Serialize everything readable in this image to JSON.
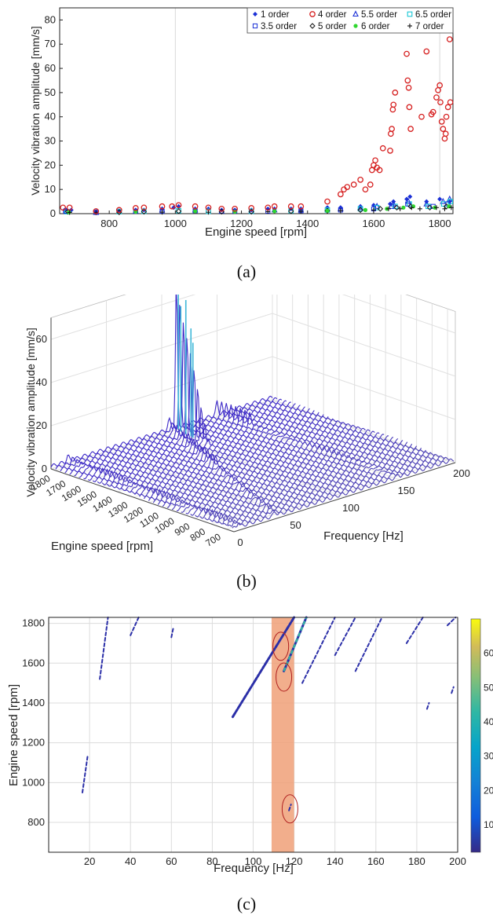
{
  "chart_data": [
    {
      "panel": "(a)",
      "type": "scatter",
      "xlabel": "Engine speed [rpm]",
      "ylabel": "Velocity vibration amplitude [mm/s]",
      "xlim": [
        650,
        1840
      ],
      "ylim": [
        0,
        85
      ],
      "xticks": [
        800,
        1000,
        1200,
        1400,
        1600,
        1800
      ],
      "yticks": [
        0,
        10,
        20,
        30,
        40,
        50,
        60,
        70,
        80
      ],
      "grid": "vertical-light",
      "legend_position": "top-right",
      "legend": [
        "1 order",
        "4 order",
        "5.5 order",
        "6.5 order",
        "3.5 order",
        "5 order",
        "6 order",
        "7 order"
      ],
      "series": [
        {
          "name": "4 order",
          "marker": "circle",
          "color": "#d62020",
          "x": [
            660,
            680,
            760,
            830,
            880,
            905,
            960,
            990,
            1010,
            1060,
            1100,
            1140,
            1180,
            1230,
            1280,
            1300,
            1350,
            1380,
            1460,
            1500,
            1510,
            1520,
            1540,
            1560,
            1575,
            1590,
            1595,
            1600,
            1605,
            1610,
            1618,
            1628,
            1650,
            1652,
            1655,
            1658,
            1660,
            1665,
            1700,
            1703,
            1706,
            1708,
            1712,
            1745,
            1760,
            1775,
            1780,
            1790,
            1795,
            1800,
            1802,
            1806,
            1810,
            1815,
            1818,
            1820,
            1825,
            1830,
            1832
          ],
          "y": [
            2.5,
            2.5,
            1,
            1.5,
            2.3,
            2.5,
            3,
            3,
            3.5,
            3,
            2.5,
            2,
            2,
            2.3,
            2.5,
            3,
            3,
            3,
            5,
            8,
            10,
            11,
            12,
            14,
            10,
            12,
            18,
            20,
            22,
            19,
            18,
            27,
            26,
            33,
            35,
            43,
            45,
            50,
            66,
            55,
            52,
            44,
            35,
            40,
            67,
            41,
            42,
            48,
            51,
            53,
            46,
            38,
            35,
            31,
            33,
            40,
            44,
            72,
            46
          ]
        },
        {
          "name": "1 order",
          "marker": "diamond-filled",
          "color": "#1a2fd6",
          "x": [
            665,
            685,
            760,
            830,
            880,
            905,
            960,
            995,
            1010,
            1060,
            1100,
            1140,
            1180,
            1230,
            1280,
            1300,
            1350,
            1380,
            1460,
            1500,
            1560,
            1600,
            1650,
            1660,
            1700,
            1710,
            1760,
            1800,
            1830
          ],
          "y": [
            1.5,
            1.5,
            0.8,
            1.2,
            1.5,
            1.5,
            2,
            2.5,
            3,
            2,
            2,
            1.5,
            1.5,
            1.5,
            2,
            2,
            2,
            2,
            2.5,
            2.5,
            3,
            3.5,
            4,
            5,
            6,
            7,
            5,
            6,
            5
          ]
        },
        {
          "name": "5.5 order",
          "marker": "triangle",
          "color": "#1a2fd6",
          "x": [
            670,
            760,
            880,
            960,
            1060,
            1140,
            1230,
            1300,
            1380,
            1500,
            1560,
            1610,
            1660,
            1705,
            1760,
            1810,
            1830
          ],
          "y": [
            1,
            0.5,
            1,
            1.5,
            1.5,
            1,
            1,
            1.5,
            1.5,
            2,
            2.5,
            3,
            4,
            5,
            4,
            5,
            6
          ]
        },
        {
          "name": "6.5 order",
          "marker": "square",
          "color": "#17c7d6",
          "x": [
            672,
            830,
            905,
            1010,
            1100,
            1230,
            1350,
            1460,
            1560,
            1610,
            1665,
            1708,
            1765,
            1812,
            1832
          ],
          "y": [
            0.8,
            0.8,
            1,
            1.2,
            1,
            1,
            1.2,
            1.5,
            2,
            2.5,
            3,
            4,
            3,
            4,
            5
          ]
        },
        {
          "name": "3.5 order",
          "marker": "square-open",
          "color": "#1a2fd6",
          "x": [
            668,
            760,
            880,
            960,
            1060,
            1180,
            1280,
            1380,
            1500,
            1600,
            1655,
            1703,
            1780,
            1825
          ],
          "y": [
            1,
            0.5,
            1,
            1,
            1.2,
            1,
            1,
            1.2,
            1.5,
            2,
            3,
            4,
            3,
            4
          ]
        },
        {
          "name": "5 order",
          "marker": "diamond-open",
          "color": "#111111",
          "x": [
            675,
            830,
            905,
            1010,
            1140,
            1230,
            1350,
            1460,
            1560,
            1620,
            1670,
            1712,
            1770,
            1820
          ],
          "y": [
            0.8,
            0.6,
            0.8,
            1,
            0.8,
            0.8,
            1,
            1.2,
            1.5,
            2,
            2.5,
            3,
            2.5,
            3
          ]
        },
        {
          "name": "6 order",
          "marker": "circle-filled",
          "color": "#2fd62f",
          "x": [
            678,
            880,
            1060,
            1180,
            1300,
            1460,
            1575,
            1640,
            1690,
            1720,
            1785,
            1828
          ],
          "y": [
            0.6,
            0.8,
            1,
            0.8,
            1,
            1.2,
            1.5,
            2,
            2.5,
            3,
            2.5,
            3
          ]
        },
        {
          "name": "7 order",
          "marker": "plus",
          "color": "#111111",
          "x": [
            680,
            760,
            960,
            1100,
            1280,
            1380,
            1500,
            1600,
            1645,
            1680,
            1715,
            1740,
            1790,
            1815,
            1835
          ],
          "y": [
            0.5,
            0.4,
            0.6,
            0.6,
            0.8,
            1,
            1.2,
            1.5,
            2,
            2,
            2.5,
            2,
            2.5,
            2,
            2.5
          ]
        }
      ]
    },
    {
      "panel": "(b)",
      "type": "waterfall",
      "xlabel": "Frequency [Hz]",
      "ylabel": "Engine speed [rpm]",
      "zlabel": "Velocity vibration amplitude [mm/s]",
      "xticks": [
        0,
        50,
        100,
        150,
        200
      ],
      "yticks": [
        700,
        800,
        900,
        1000,
        1100,
        1200,
        1300,
        1400,
        1500,
        1600,
        1700,
        1800
      ],
      "zticks": [
        0,
        20,
        40,
        60
      ],
      "xlim": [
        0,
        200
      ],
      "ylim": [
        650,
        1830
      ],
      "zlim": [
        0,
        70
      ],
      "peaks": [
        {
          "frequency": 115,
          "rpm": 1830,
          "amplitude": 72
        },
        {
          "frequency": 113,
          "rpm": 1800,
          "amplitude": 58
        },
        {
          "frequency": 112,
          "rpm": 1760,
          "amplitude": 62
        },
        {
          "frequency": 111,
          "rpm": 1720,
          "amplitude": 50
        },
        {
          "frequency": 110,
          "rpm": 1700,
          "amplitude": 44
        }
      ]
    },
    {
      "panel": "(c)",
      "type": "heatmap",
      "xlabel": "Frequency [Hz]",
      "ylabel": "Engine speed [rpm]",
      "xlim": [
        0,
        200
      ],
      "ylim": [
        650,
        1830
      ],
      "xticks": [
        20,
        40,
        60,
        80,
        100,
        120,
        140,
        160,
        180,
        200
      ],
      "yticks": [
        800,
        1000,
        1200,
        1400,
        1600,
        1800
      ],
      "colorbar": {
        "ticks": [
          10,
          20,
          30,
          40,
          50,
          60
        ],
        "range": [
          2,
          70
        ]
      },
      "highlight_band": {
        "from": 109,
        "to": 120,
        "color": "#f0a078"
      },
      "ridges": [
        {
          "f": [
            16.5,
            19
          ],
          "rpm": [
            950,
            1130
          ]
        },
        {
          "f": [
            25,
            29
          ],
          "rpm": [
            1520,
            1830
          ]
        },
        {
          "f": [
            40,
            44
          ],
          "rpm": [
            1740,
            1830
          ]
        },
        {
          "f": [
            60,
            61
          ],
          "rpm": [
            1730,
            1780
          ]
        },
        {
          "f": [
            90,
            120
          ],
          "rpm": [
            1330,
            1830
          ]
        },
        {
          "f": [
            115,
            126
          ],
          "rpm": [
            1560,
            1830
          ]
        },
        {
          "f": [
            124,
            140
          ],
          "rpm": [
            1500,
            1830
          ]
        },
        {
          "f": [
            140,
            150
          ],
          "rpm": [
            1640,
            1830
          ]
        },
        {
          "f": [
            150,
            163
          ],
          "rpm": [
            1560,
            1830
          ]
        },
        {
          "f": [
            175,
            183
          ],
          "rpm": [
            1700,
            1830
          ]
        },
        {
          "f": [
            195,
            199
          ],
          "rpm": [
            1790,
            1830
          ]
        },
        {
          "f": [
            185,
            186
          ],
          "rpm": [
            1370,
            1400
          ]
        },
        {
          "f": [
            197,
            198
          ],
          "rpm": [
            1450,
            1480
          ]
        },
        {
          "f": [
            117.5,
            118.5
          ],
          "rpm": [
            860,
            890
          ]
        }
      ],
      "ellipses": [
        {
          "f": 113.5,
          "rpm": 1685
        },
        {
          "f": 115,
          "rpm": 1530
        },
        {
          "f": 118,
          "rpm": 868
        }
      ]
    }
  ],
  "captions": {
    "a": "(a)",
    "b": "(b)",
    "c": "(c)"
  }
}
